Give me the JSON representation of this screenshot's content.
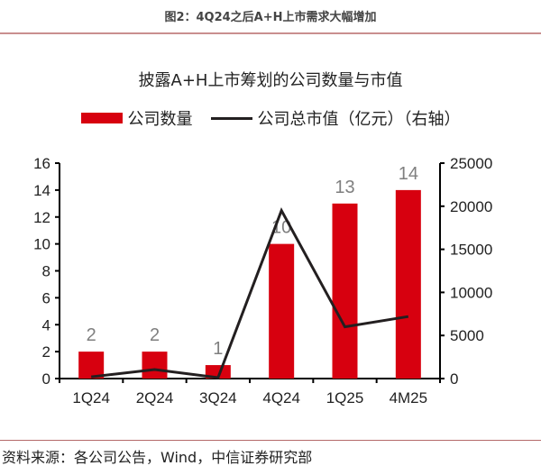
{
  "figure_title": "图2：4Q24之后A+H上市需求大幅增加",
  "chart_title": "披露A+H上市筹划的公司数量与市值",
  "legend": [
    {
      "label": "公司数量",
      "type": "bar",
      "color": "#d7000f"
    },
    {
      "label": "公司总市值（亿元）（右轴）",
      "type": "line",
      "color": "#231f20"
    }
  ],
  "source": "资料来源：各公司公告，Wind，中信证券研究部",
  "colors": {
    "bar": "#d7000f",
    "line": "#231f20",
    "axis": "#000000",
    "data_label": "#7f7f7f",
    "rule": "#c98f8f"
  },
  "chart_data": {
    "type": "bar+line",
    "title": "披露A+H上市筹划的公司数量与市值",
    "categories": [
      "1Q24",
      "2Q24",
      "3Q24",
      "4Q24",
      "1Q25",
      "4M25"
    ],
    "series": [
      {
        "name": "公司数量",
        "type": "bar",
        "axis": "left",
        "values": [
          2,
          2,
          1,
          10,
          13,
          14
        ],
        "data_labels": [
          "2",
          "2",
          "1",
          "10",
          "13",
          "14"
        ]
      },
      {
        "name": "公司总市值（亿元）（右轴）",
        "type": "line",
        "axis": "right",
        "values": [
          200,
          1050,
          100,
          19500,
          6000,
          7200
        ]
      }
    ],
    "y_left": {
      "ylim": [
        0,
        16
      ],
      "ticks": [
        "0",
        "2",
        "4",
        "6",
        "8",
        "10",
        "12",
        "14",
        "16"
      ]
    },
    "y_right": {
      "ylim": [
        0,
        25000
      ],
      "ticks": [
        "0",
        "5000",
        "10000",
        "15000",
        "20000",
        "25000"
      ]
    },
    "xlabel": "",
    "ylabel": "",
    "grid": false,
    "legend_position": "top"
  }
}
